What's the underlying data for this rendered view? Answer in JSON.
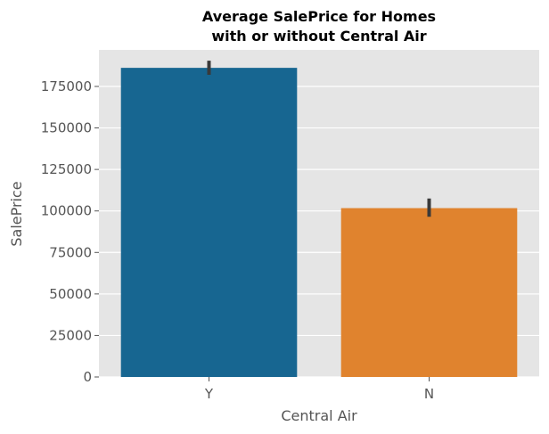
{
  "chart_data": {
    "type": "bar",
    "title": [
      "Average SalePrice for Homes",
      "with or without Central Air"
    ],
    "xlabel": "Central Air",
    "ylabel": "SalePrice",
    "categories": [
      "Y",
      "N"
    ],
    "values": [
      186200,
      101700
    ],
    "error_bars": [
      {
        "low": 182000,
        "high": 190500
      },
      {
        "low": 96500,
        "high": 107500
      }
    ],
    "colors": [
      "#176691",
      "#e0832e"
    ],
    "ylim": [
      0,
      197000
    ],
    "yticks": [
      0,
      25000,
      50000,
      75000,
      100000,
      125000,
      150000,
      175000
    ],
    "grid": true,
    "background": "#e5e5e5",
    "errorbar_color": "#3a3a3a"
  }
}
